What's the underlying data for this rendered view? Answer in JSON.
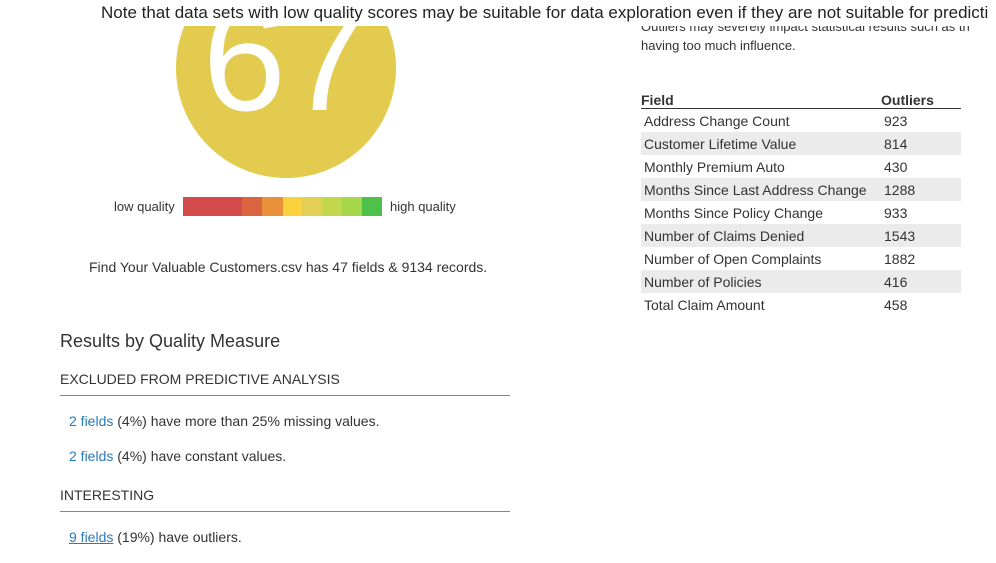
{
  "header": {
    "note": "Note that data sets with low quality scores may be suitable for data exploration even if they are not suitable for predicti"
  },
  "score": {
    "value": 67,
    "low_label": "low quality",
    "high_label": "high quality"
  },
  "summary": "Find Your Valuable Customers.csv has 47 fields & 9134 records.",
  "outliers": {
    "intro_cut": "Outliers may severely impact statistical results such as th",
    "intro": "having too much influence.",
    "columns": [
      "Field",
      "Outliers"
    ],
    "rows": [
      [
        "Address Change Count",
        923
      ],
      [
        "Customer Lifetime Value",
        814
      ],
      [
        "Monthly Premium Auto",
        430
      ],
      [
        "Months Since Last Address Change",
        1288
      ],
      [
        "Months Since Policy Change",
        933
      ],
      [
        "Number of Claims Denied",
        1543
      ],
      [
        "Number of Open Complaints",
        1882
      ],
      [
        "Number of Policies",
        416
      ],
      [
        "Total Claim Amount",
        458
      ]
    ]
  },
  "results": {
    "title": "Results by Quality Measure",
    "sections": [
      {
        "heading": "EXCLUDED FROM PREDICTIVE ANALYSIS",
        "items": [
          {
            "link": "2 fields",
            "text": "(4%) have more than 25% missing values."
          },
          {
            "link": "2 fields",
            "text": "(4%) have constant values."
          }
        ]
      },
      {
        "heading": "INTERESTING",
        "items": [
          {
            "link": "9 fields",
            "text": "(19%) have outliers.",
            "underline": true
          }
        ]
      }
    ]
  }
}
